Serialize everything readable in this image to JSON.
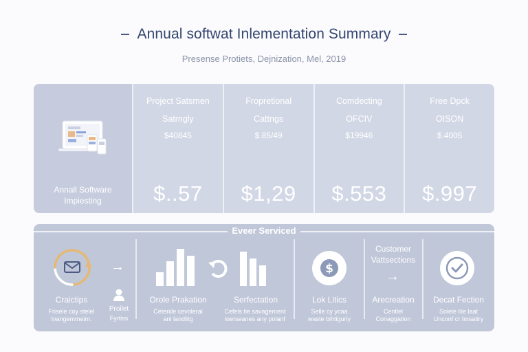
{
  "header": {
    "title": "Annual softwat Inlementation Summary",
    "subtitle": "Presense Protiets, Dejnization, Mel, 2019"
  },
  "top_panel": {
    "first_label_1": "Annall Software",
    "first_label_2": "Impiesting",
    "columns": [
      {
        "line1": "Project Satsmen",
        "line2": "Satrngly",
        "line3": "$40845",
        "value": "$..57"
      },
      {
        "line1": "Fropretional",
        "line2": "Cattngs",
        "line3": "$.85/49",
        "value": "$1,29"
      },
      {
        "line1": "Comdecting",
        "line2": "OFCIV",
        "line3": "$19946",
        "value": "$.553"
      },
      {
        "line1": "Free Dpck",
        "line2": "OISON",
        "line3": "$.4005",
        "value": "$.997"
      }
    ]
  },
  "bottom_panel": {
    "title": "Eveer Serviced",
    "items": [
      {
        "label": "Craictips",
        "sub1": "Frisele coy stelel",
        "sub2": "Ivangemmeim."
      },
      {
        "label": "Proilet",
        "sub1": "Fyrtiss",
        "sub2": ""
      },
      {
        "label": "Orole Prakation",
        "sub1": "Cetenile cevoleral",
        "sub2": "anl landlitg"
      },
      {
        "label": "Serfectation",
        "sub1": "Cefels tie savagement",
        "sub2": "loerseanes any polanf"
      },
      {
        "label": "Lok Litics",
        "sub1": "Selle cy ycaa",
        "sub2": "waste bihtiguriy"
      },
      {
        "label": "Arecreation",
        "sub1": "Centlel",
        "sub2": "Conaggation"
      },
      {
        "label": "Decat Fection",
        "sub1": "Solele tlie laat",
        "sub2": "Unconf cr Imsatiry"
      }
    ],
    "customer_1": "Customer",
    "customer_2": "Vattsections"
  },
  "colors": {
    "background": "#fbfbfd",
    "top_panel": "#d2d7e5",
    "bottom_panel": "#c0c7d9",
    "accent": "#e6b873",
    "title": "#34466f"
  },
  "icons": [
    "laptop-devices-icon",
    "email-cycle-icon",
    "arrow-right-icon",
    "person-icon",
    "bar-chart-icon",
    "refresh-icon",
    "dollar-coin-icon",
    "check-circle-icon"
  ]
}
